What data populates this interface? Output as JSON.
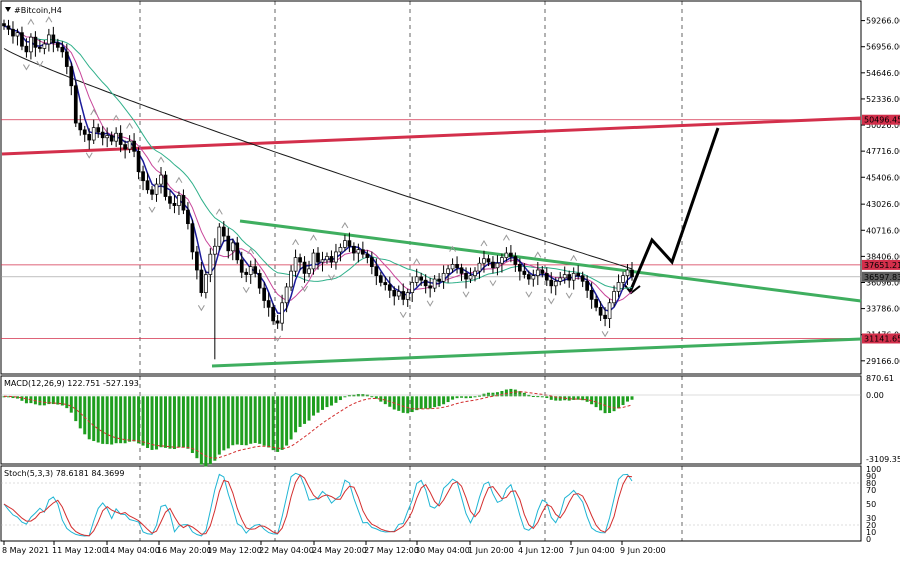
{
  "chart_data": [
    {
      "type": "candlestick",
      "title": "#Bitcoin,H4",
      "price_range": [
        28000,
        61000
      ],
      "y_ticks": [
        "59266.00",
        "56956.00",
        "54646.00",
        "52336.00",
        "50026.00",
        "47716.00",
        "45406.00",
        "43026.00",
        "40716.00",
        "38406.00",
        "36096.00",
        "33786.00",
        "31476.00",
        "29166.00"
      ],
      "x_ticks": [
        "8 May 2021",
        "11 May 12:00",
        "14 May 04:00",
        "16 May 20:00",
        "19 May 12:00",
        "22 May 04:00",
        "24 May 20:00",
        "27 May 12:00",
        "30 May 04:00",
        "1 Jun 20:00",
        "4 Jun 12:00",
        "7 Jun 04:00",
        "9 Jun 20:00"
      ],
      "price_labels": [
        {
          "text": "50496.45",
          "price": 50496.45,
          "color": "#d32f4b"
        },
        {
          "text": "37651.21",
          "price": 37651.21,
          "color": "#d32f4b"
        },
        {
          "text": "36597.83",
          "price": 36597.83,
          "color": "#606060"
        },
        {
          "text": "31141.65",
          "price": 31141.65,
          "color": "#d32f4b"
        }
      ],
      "horizontal_levels": [
        50496.45,
        37651.21,
        31141.65
      ],
      "current_price": 36597.83,
      "close_series": [
        58800,
        58500,
        57900,
        58200,
        57000,
        56500,
        57800,
        56900,
        56800,
        57200,
        58000,
        57300,
        56900,
        56500,
        55200,
        53500,
        50200,
        49600,
        49200,
        48700,
        49800,
        49400,
        48900,
        49100,
        48600,
        49300,
        48300,
        47900,
        48600,
        47700,
        45900,
        45100,
        44300,
        43900,
        44800,
        45600,
        43700,
        43100,
        42900,
        43800,
        42500,
        41300,
        38800,
        37200,
        35200,
        36800,
        38600,
        39300,
        41000,
        40200,
        38900,
        39600,
        38100,
        37000,
        36800,
        37500,
        36900,
        35600,
        34500,
        33900,
        32700,
        32500,
        34300,
        35700,
        37100,
        38300,
        37900,
        36900,
        37300,
        38700,
        37900,
        38100,
        38400,
        37900,
        38800,
        39200,
        39800,
        39300,
        38700,
        39000,
        38600,
        38300,
        37500,
        36700,
        36100,
        35900,
        35400,
        34900,
        35300,
        34600,
        35200,
        36100,
        36600,
        36300,
        35800,
        35600,
        36400,
        36200,
        36900,
        37300,
        37700,
        37400,
        36900,
        36400,
        36700,
        37100,
        37800,
        38200,
        37900,
        37400,
        37800,
        38300,
        38700,
        38400,
        37700,
        37100,
        36800,
        36400,
        36700,
        37200,
        36900,
        36300,
        35800,
        36200,
        36500,
        36800,
        36300,
        36900,
        36700,
        36200,
        35400,
        34600,
        33900,
        33200,
        32900,
        34300,
        35300,
        36100,
        36700,
        37200,
        36600
      ]
    },
    {
      "type": "histogram",
      "title": "MACD(12,26,9) 122.751 -527.193",
      "y_ticks": [
        "870.61",
        "0.00",
        "-3109.35"
      ],
      "range": [
        -3800,
        1100
      ]
    },
    {
      "type": "line",
      "title": "Stoch(5,3,3) 78.6181 84.3699",
      "y_ticks": [
        "100",
        "90",
        "80",
        "70",
        "50",
        "30",
        "20",
        "10",
        "0"
      ],
      "range": [
        0,
        100
      ]
    }
  ]
}
